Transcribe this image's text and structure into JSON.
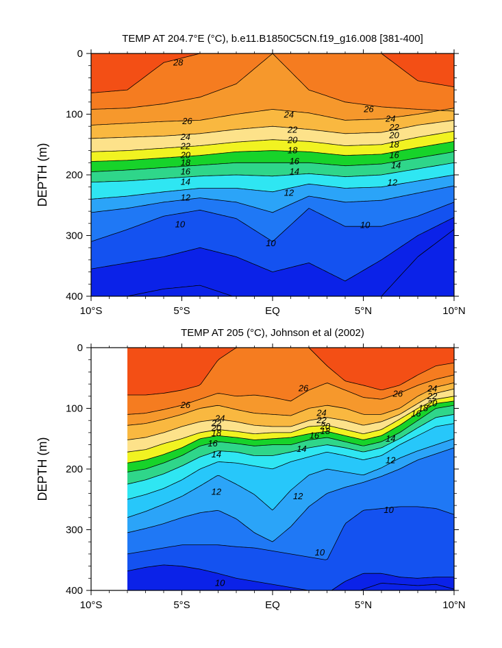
{
  "chart_data": [
    {
      "type": "contour",
      "title": "TEMP AT 204.7°E (°C), b.e11.B1850C5CN.f19_g16.008 [381-400]",
      "ylabel": "DEPTH (m)",
      "xlabel": "",
      "x_ticks": [
        {
          "value": -10,
          "label": "10°S"
        },
        {
          "value": -5,
          "label": "5°S"
        },
        {
          "value": 0,
          "label": "EQ"
        },
        {
          "value": 5,
          "label": "5°N"
        },
        {
          "value": 10,
          "label": "10°N"
        }
      ],
      "y_ticks": [
        0,
        100,
        200,
        300,
        400
      ],
      "xlim": [
        -10,
        10
      ],
      "ylim": [
        400,
        0
      ],
      "data_xlim": [
        -10,
        10
      ],
      "contour_levels": [
        8,
        9,
        10,
        11,
        12,
        13,
        14,
        15,
        16,
        17,
        18,
        19,
        20,
        21,
        22,
        23,
        24,
        25,
        26,
        27,
        28
      ],
      "colors": {
        "lt9": "#0b22e8",
        "9-10": "#1452f0",
        "10-11": "#1f78f5",
        "11-12": "#2ba4f8",
        "12-13": "#27c7fa",
        "13-14": "#2fe6f2",
        "14-15": "#35e0c9",
        "15-16": "#2fd68a",
        "16-17": "#22c94e",
        "17-18": "#17d32a",
        "18-19": "#a8ea16",
        "19-20": "#f1f321",
        "20-21": "#fff34f",
        "21-22": "#fde28a",
        "22-23": "#fbcc5e",
        "23-24": "#f9b840",
        "24-25": "#f7a937",
        "25-26": "#f6982c",
        "26-27": "#f57c20",
        "27-28": "#f34f15",
        "gt28": "#e83c0d"
      },
      "depth_of_isotherm_m": {
        "lat": [
          -10,
          -8,
          -6,
          -4,
          -2,
          0,
          2,
          4,
          6,
          8,
          10
        ],
        "27": [
          65,
          60,
          15,
          0,
          0,
          0,
          0,
          0,
          0,
          45,
          55
        ],
        "26": [
          92,
          90,
          83,
          72,
          50,
          0,
          60,
          80,
          88,
          92,
          95
        ],
        "24": [
          118,
          115,
          112,
          110,
          100,
          92,
          98,
          110,
          108,
          100,
          90
        ],
        "22": [
          140,
          138,
          136,
          132,
          125,
          120,
          125,
          132,
          130,
          118,
          110
        ],
        "20": [
          162,
          160,
          156,
          152,
          146,
          142,
          145,
          152,
          150,
          138,
          128
        ],
        "18": [
          178,
          176,
          172,
          168,
          162,
          160,
          162,
          168,
          166,
          155,
          145
        ],
        "16": [
          195,
          192,
          188,
          184,
          180,
          180,
          180,
          185,
          182,
          172,
          162
        ],
        "14": [
          212,
          210,
          206,
          202,
          200,
          202,
          198,
          203,
          200,
          190,
          180
        ],
        "12": [
          240,
          235,
          228,
          222,
          222,
          228,
          215,
          222,
          220,
          210,
          200
        ],
        "11": [
          262,
          255,
          245,
          238,
          245,
          262,
          235,
          245,
          242,
          230,
          218
        ],
        "10": [
          310,
          290,
          268,
          258,
          272,
          310,
          255,
          285,
          285,
          268,
          245
        ],
        "9": [
          355,
          345,
          335,
          320,
          335,
          360,
          345,
          375,
          340,
          300,
          270
        ],
        "8": [
          410,
          400,
          388,
          382,
          402,
          420,
          430,
          430,
          400,
          335,
          290
        ]
      },
      "contour_labels": [
        {
          "value": "28",
          "x": -5.2,
          "y": 15
        },
        {
          "value": "26",
          "x": -4.7,
          "y": 112
        },
        {
          "value": "24",
          "x": 0.9,
          "y": 101
        },
        {
          "value": "26",
          "x": 5.3,
          "y": 92
        },
        {
          "value": "24",
          "x": 6.5,
          "y": 108
        },
        {
          "value": "24",
          "x": -4.8,
          "y": 138
        },
        {
          "value": "22",
          "x": 1.1,
          "y": 126
        },
        {
          "value": "22",
          "x": 6.7,
          "y": 122
        },
        {
          "value": "22",
          "x": -4.8,
          "y": 153
        },
        {
          "value": "20",
          "x": 1.1,
          "y": 143
        },
        {
          "value": "20",
          "x": 6.7,
          "y": 135
        },
        {
          "value": "20",
          "x": -4.8,
          "y": 168
        },
        {
          "value": "18",
          "x": 1.1,
          "y": 160
        },
        {
          "value": "18",
          "x": 6.7,
          "y": 150
        },
        {
          "value": "18",
          "x": -4.8,
          "y": 180
        },
        {
          "value": "16",
          "x": 1.2,
          "y": 178
        },
        {
          "value": "16",
          "x": 6.7,
          "y": 168
        },
        {
          "value": "16",
          "x": -4.8,
          "y": 195
        },
        {
          "value": "14",
          "x": 1.2,
          "y": 195
        },
        {
          "value": "14",
          "x": 6.8,
          "y": 185
        },
        {
          "value": "14",
          "x": -4.8,
          "y": 212
        },
        {
          "value": "12",
          "x": 0.9,
          "y": 230
        },
        {
          "value": "12",
          "x": 6.6,
          "y": 213
        },
        {
          "value": "12",
          "x": -4.8,
          "y": 238
        },
        {
          "value": "10",
          "x": -5.1,
          "y": 282
        },
        {
          "value": "10",
          "x": 5.1,
          "y": 283
        },
        {
          "value": "10",
          "x": -0.1,
          "y": 313
        }
      ]
    },
    {
      "type": "contour",
      "title": "TEMP AT 205 (°C), Johnson et al (2002)",
      "ylabel": "DEPTH (m)",
      "xlabel": "",
      "x_ticks": [
        {
          "value": -10,
          "label": "10°S"
        },
        {
          "value": -5,
          "label": "5°S"
        },
        {
          "value": 0,
          "label": "EQ"
        },
        {
          "value": 5,
          "label": "5°N"
        },
        {
          "value": 10,
          "label": "10°N"
        }
      ],
      "y_ticks": [
        0,
        100,
        200,
        300,
        400
      ],
      "xlim": [
        -10,
        10
      ],
      "ylim": [
        400,
        0
      ],
      "data_xlim": [
        -8,
        10
      ],
      "contour_levels": [
        8,
        9,
        10,
        11,
        12,
        13,
        14,
        15,
        16,
        17,
        18,
        19,
        20,
        21,
        22,
        23,
        24,
        25,
        26,
        27,
        28
      ],
      "colors": {
        "lt9": "#0b22e8",
        "9-10": "#1452f0",
        "10-11": "#1f78f5",
        "11-12": "#2ba4f8",
        "12-13": "#27c7fa",
        "13-14": "#2fe6f2",
        "14-15": "#35e0c9",
        "15-16": "#2fd68a",
        "16-17": "#22c94e",
        "17-18": "#17d32a",
        "18-19": "#a8ea16",
        "19-20": "#f1f321",
        "20-21": "#fff34f",
        "21-22": "#fde28a",
        "22-23": "#fbcc5e",
        "23-24": "#f9b840",
        "24-25": "#f7a937",
        "25-26": "#f6982c",
        "26-27": "#f57c20",
        "27-28": "#f34f15",
        "gt28": "#e83c0d"
      },
      "depth_of_isotherm_m": {
        "lat": [
          -8,
          -7,
          -6,
          -5,
          -4,
          -3,
          -2,
          -1,
          0,
          1,
          2,
          3,
          4,
          5,
          6,
          7,
          8,
          9,
          10
        ],
        "27": [
          78,
          78,
          75,
          70,
          62,
          20,
          0,
          0,
          0,
          0,
          0,
          30,
          55,
          62,
          70,
          62,
          45,
          30,
          25
        ],
        "26": [
          110,
          108,
          102,
          95,
          85,
          75,
          80,
          78,
          82,
          88,
          70,
          58,
          70,
          82,
          85,
          75,
          62,
          52,
          45
        ],
        "24": [
          128,
          125,
          118,
          110,
          100,
          95,
          102,
          108,
          110,
          112,
          100,
          95,
          100,
          110,
          110,
          100,
          80,
          65,
          58
        ],
        "22": [
          152,
          148,
          140,
          130,
          122,
          118,
          122,
          128,
          130,
          130,
          120,
          115,
          120,
          128,
          122,
          110,
          92,
          75,
          68
        ],
        "20": [
          172,
          168,
          158,
          150,
          140,
          135,
          138,
          142,
          140,
          140,
          130,
          128,
          135,
          142,
          135,
          118,
          100,
          85,
          80
        ],
        "18": [
          190,
          185,
          176,
          165,
          150,
          145,
          148,
          152,
          150,
          148,
          142,
          138,
          145,
          152,
          145,
          128,
          108,
          92,
          88
        ],
        "16": [
          205,
          200,
          190,
          178,
          162,
          155,
          158,
          162,
          160,
          160,
          152,
          148,
          155,
          162,
          155,
          140,
          120,
          100,
          95
        ],
        "14": [
          225,
          218,
          208,
          195,
          180,
          170,
          172,
          178,
          178,
          172,
          165,
          160,
          165,
          172,
          165,
          150,
          132,
          115,
          110
        ],
        "13": [
          250,
          242,
          232,
          218,
          200,
          188,
          190,
          195,
          200,
          188,
          180,
          172,
          178,
          185,
          178,
          160,
          145,
          130,
          125
        ],
        "12": [
          280,
          270,
          258,
          245,
          228,
          210,
          225,
          242,
          268,
          235,
          210,
          200,
          205,
          210,
          198,
          182,
          170,
          160,
          150
        ],
        "11": [
          305,
          298,
          290,
          280,
          272,
          268,
          282,
          305,
          320,
          295,
          262,
          240,
          230,
          222,
          212,
          200,
          185,
          175,
          165
        ],
        "10": [
          340,
          335,
          330,
          325,
          325,
          325,
          328,
          330,
          335,
          340,
          345,
          350,
          290,
          268,
          265,
          262,
          262,
          265,
          275
        ],
        "9": [
          368,
          362,
          358,
          360,
          365,
          372,
          380,
          385,
          390,
          395,
          400,
          405,
          385,
          372,
          372,
          378,
          380,
          378,
          378
        ],
        "8": [
          420,
          420,
          420,
          420,
          420,
          420,
          420,
          420,
          420,
          420,
          420,
          420,
          410,
          398,
          388,
          390,
          392,
          390,
          398
        ]
      },
      "contour_labels": [
        {
          "value": "26",
          "x": -4.8,
          "y": 95
        },
        {
          "value": "26",
          "x": 1.7,
          "y": 67
        },
        {
          "value": "26",
          "x": 6.9,
          "y": 76
        },
        {
          "value": "24",
          "x": 8.8,
          "y": 68
        },
        {
          "value": "24",
          "x": -2.9,
          "y": 117
        },
        {
          "value": "24",
          "x": 2.7,
          "y": 108
        },
        {
          "value": "22",
          "x": 8.8,
          "y": 80
        },
        {
          "value": "22",
          "x": -3.1,
          "y": 125
        },
        {
          "value": "22",
          "x": 2.7,
          "y": 120
        },
        {
          "value": "20",
          "x": 8.8,
          "y": 92
        },
        {
          "value": "20",
          "x": -3.1,
          "y": 133
        },
        {
          "value": "20",
          "x": 2.9,
          "y": 130
        },
        {
          "value": "18",
          "x": 8.3,
          "y": 100
        },
        {
          "value": "18",
          "x": -3.1,
          "y": 141
        },
        {
          "value": "18",
          "x": 2.9,
          "y": 138
        },
        {
          "value": "16",
          "x": 7.9,
          "y": 109
        },
        {
          "value": "16",
          "x": -3.3,
          "y": 158
        },
        {
          "value": "16",
          "x": 2.3,
          "y": 145
        },
        {
          "value": "14",
          "x": -3.1,
          "y": 176
        },
        {
          "value": "14",
          "x": 1.6,
          "y": 167
        },
        {
          "value": "14",
          "x": 6.5,
          "y": 150
        },
        {
          "value": "12",
          "x": -3.1,
          "y": 238
        },
        {
          "value": "12",
          "x": 1.4,
          "y": 245
        },
        {
          "value": "12",
          "x": 6.5,
          "y": 186
        },
        {
          "value": "10",
          "x": 6.4,
          "y": 268
        },
        {
          "value": "10",
          "x": 2.6,
          "y": 338
        },
        {
          "value": "10",
          "x": -2.9,
          "y": 388
        }
      ]
    }
  ]
}
